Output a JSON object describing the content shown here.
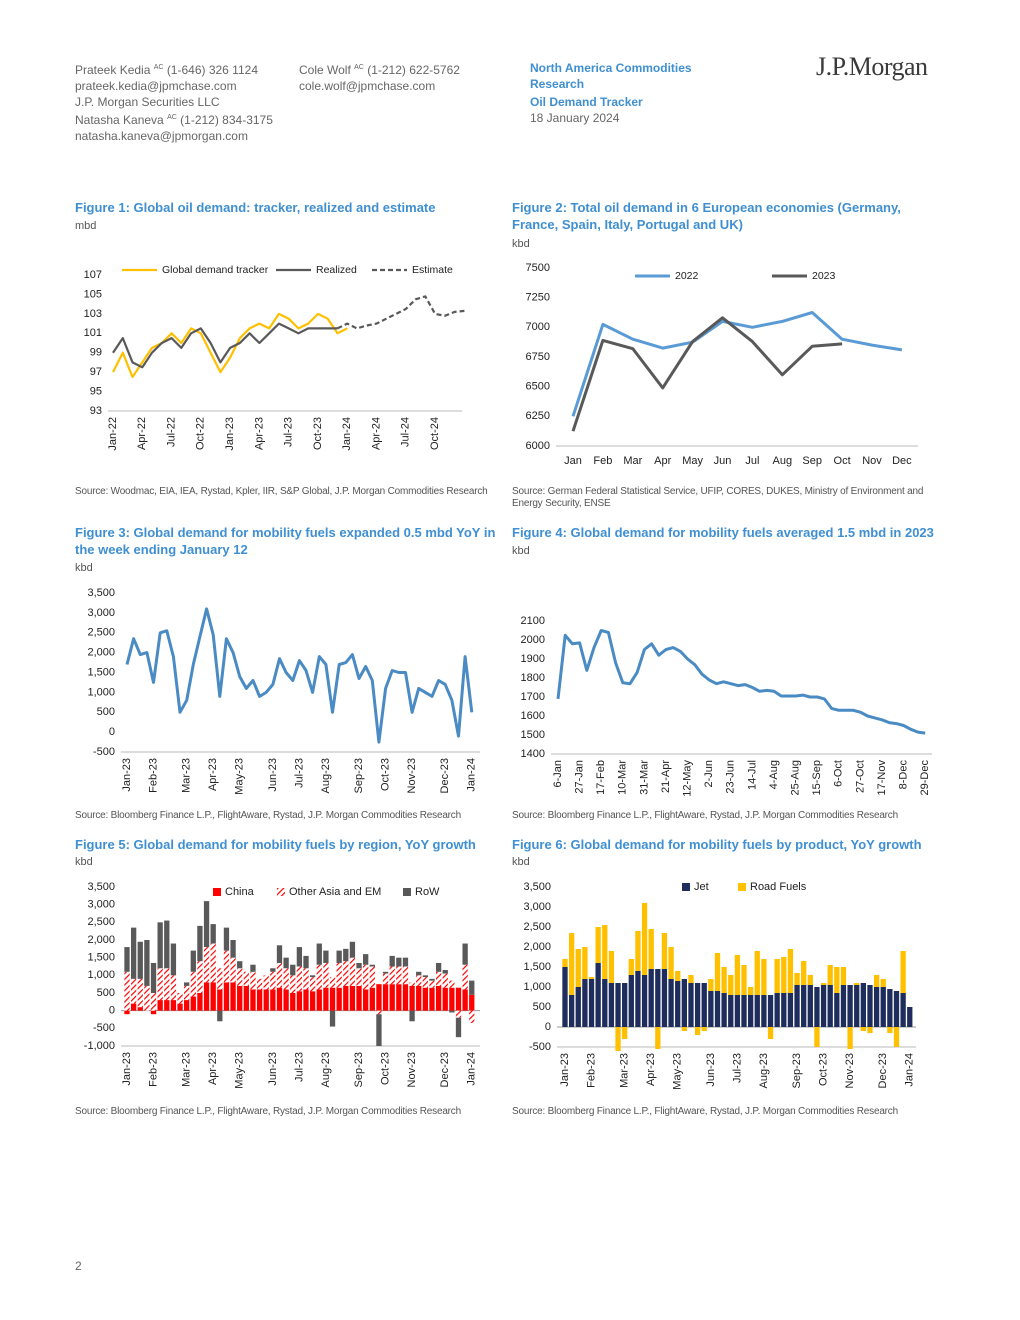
{
  "header": {
    "analysts": [
      {
        "name": "Prateek Kedia",
        "sup": "AC",
        "phone": "(1-646) 326 1124",
        "email": "prateek.kedia@jpmchase.com",
        "firm": "J.P. Morgan Securities LLC"
      },
      {
        "name": "Natasha Kaneva",
        "sup": "AC",
        "phone": "(1-212) 834-3175",
        "email": "natasha.kaneva@jpmorgan.com"
      },
      {
        "name": "Cole Wolf",
        "sup": "AC",
        "phone": "(1-212) 622-5762",
        "email": "cole.wolf@jpmchase.com"
      }
    ],
    "desk": "North America Commodities Research",
    "publication": "Oil Demand Tracker",
    "date": "18 January 2024",
    "logo": "J.P.Morgan"
  },
  "page_number": "2",
  "chart_data": [
    {
      "type": "line",
      "title": "Figure 1: Global oil demand: tracker, realized and estimate",
      "ylabel": "mbd",
      "source": "Source: Woodmac, EIA, IEA, Rystad, Kpler, IIR, S&P Global, J.P. Morgan Commodities Research",
      "categories": [
        "Jan-22",
        null,
        null,
        "Apr-22",
        null,
        null,
        "Jul-22",
        null,
        null,
        "Oct-22",
        null,
        null,
        "Jan-23",
        null,
        null,
        "Apr-23",
        null,
        null,
        "Jul-23",
        null,
        null,
        "Oct-23",
        null,
        null,
        "Jan-24",
        null,
        null,
        "Apr-24",
        null,
        null,
        "Jul-24",
        null,
        null,
        "Oct-24",
        null,
        null,
        null
      ],
      "series": [
        {
          "name": "Global demand tracker",
          "color": "#ffc000",
          "values": [
            97,
            99,
            96.5,
            98,
            99.5,
            100,
            101,
            100,
            101.5,
            101,
            99,
            97,
            98.5,
            100.5,
            101.5,
            102,
            101.5,
            103,
            102.5,
            101.5,
            102,
            103,
            102.5,
            101,
            101.5,
            null,
            null,
            null,
            null,
            null,
            null,
            null,
            null,
            null,
            null,
            null,
            null
          ]
        },
        {
          "name": "Realized",
          "color": "#595959",
          "values": [
            99,
            100.5,
            98,
            97.5,
            99,
            100,
            100.5,
            99.5,
            101,
            101.5,
            100,
            98,
            99.5,
            100,
            101,
            100,
            101,
            102,
            101.5,
            101,
            101.5,
            101.5,
            101.5,
            101.5,
            null,
            null,
            null,
            null,
            null,
            null,
            null,
            null,
            null,
            null,
            null,
            null,
            null
          ]
        },
        {
          "name": "Estimate",
          "color": "#595959",
          "dashed": true,
          "values": [
            null,
            null,
            null,
            null,
            null,
            null,
            null,
            null,
            null,
            null,
            null,
            null,
            null,
            null,
            null,
            null,
            null,
            null,
            null,
            null,
            null,
            null,
            null,
            101.5,
            102,
            101.5,
            101.8,
            102,
            102.5,
            103,
            103.5,
            104.5,
            104.8,
            103,
            102.8,
            103.2,
            103.3
          ]
        }
      ],
      "ylim": [
        93,
        107
      ],
      "yticks": [
        93,
        95,
        97,
        99,
        101,
        103,
        105,
        107
      ],
      "grid": false
    },
    {
      "type": "line",
      "title": "Figure 2: Total oil demand in 6 European economies (Germany, France, Spain, Italy, Portugal and UK)",
      "ylabel": "kbd",
      "source": "Source: German Federal Statistical Service, UFIP, CORES, DUKES, Ministry of Environment and Energy Security, ENSE",
      "categories": [
        "Jan",
        "Feb",
        "Mar",
        "Apr",
        "May",
        "Jun",
        "Jul",
        "Aug",
        "Sep",
        "Oct",
        "Nov",
        "Dec"
      ],
      "series": [
        {
          "name": "2022",
          "color": "#5b9bd5",
          "values": [
            6250,
            7025,
            6900,
            6825,
            6875,
            7050,
            7000,
            7050,
            7125,
            6900,
            6850,
            6810
          ]
        },
        {
          "name": "2023",
          "color": "#595959",
          "values": [
            6125,
            6890,
            6820,
            6490,
            6880,
            7080,
            6880,
            6600,
            6840,
            6860,
            null,
            null
          ]
        }
      ],
      "ylim": [
        6000,
        7500
      ],
      "yticks": [
        6000,
        6250,
        6500,
        6750,
        7000,
        7250,
        7500
      ],
      "grid": false
    },
    {
      "type": "line",
      "title": "Figure 3: Global demand for mobility fuels expanded 0.5 mbd YoY in the week ending January 12",
      "ylabel": "kbd",
      "source": "Source: Bloomberg Finance L.P., FlightAware, Rystad, J.P. Morgan Commodities Research",
      "categories": [
        "Jan-23",
        null,
        null,
        null,
        "Feb-23",
        null,
        null,
        null,
        null,
        "Mar-23",
        null,
        null,
        null,
        "Apr-23",
        null,
        null,
        null,
        "May-23",
        null,
        null,
        null,
        null,
        "Jun-23",
        null,
        null,
        null,
        "Jul-23",
        null,
        null,
        null,
        "Aug-23",
        null,
        null,
        null,
        null,
        "Sep-23",
        null,
        null,
        null,
        "Oct-23",
        null,
        null,
        null,
        "Nov-23",
        null,
        null,
        null,
        null,
        "Dec-23",
        null,
        null,
        null,
        "Jan-24"
      ],
      "series": [
        {
          "name": "Mobility fuels",
          "color": "#4a8bc4",
          "values": [
            1700,
            2350,
            1950,
            2000,
            1250,
            2500,
            2550,
            1900,
            500,
            800,
            1700,
            2400,
            3100,
            2450,
            900,
            2350,
            2000,
            1400,
            1100,
            1300,
            900,
            1000,
            1200,
            1850,
            1500,
            1300,
            1800,
            1550,
            1000,
            1900,
            1700,
            500,
            1700,
            1750,
            1950,
            1350,
            1650,
            1300,
            -250,
            1100,
            1550,
            1500,
            1500,
            500,
            1100,
            1000,
            900,
            1300,
            1200,
            800,
            -100,
            1900,
            500
          ]
        }
      ],
      "ylim": [
        -500,
        3500
      ],
      "yticks": [
        -500,
        0,
        500,
        {
          "value": 1000,
          "label": "1,000"
        },
        {
          "value": 1500,
          "label": "1,500"
        },
        {
          "value": 2000,
          "label": "2,000"
        },
        {
          "value": 2500,
          "label": "2,500"
        },
        {
          "value": 3000,
          "label": "3,000"
        },
        {
          "value": 3500,
          "label": "3,500"
        }
      ],
      "grid": false
    },
    {
      "type": "line",
      "title": "Figure 4: Global demand for mobility fuels averaged 1.5 mbd in 2023",
      "ylabel": "kbd",
      "source": "Source: Bloomberg Finance L.P., FlightAware, Rystad, J.P. Morgan Commodities Research",
      "categories": [
        "6-Jan",
        null,
        null,
        "27-Jan",
        null,
        null,
        "17-Feb",
        null,
        null,
        "10-Mar",
        null,
        null,
        "31-Mar",
        null,
        null,
        "21-Apr",
        null,
        null,
        "12-May",
        null,
        null,
        "2-Jun",
        null,
        null,
        "23-Jun",
        null,
        null,
        "14-Jul",
        null,
        null,
        "4-Aug",
        null,
        null,
        "25-Aug",
        null,
        null,
        "15-Sep",
        null,
        null,
        "6-Oct",
        null,
        null,
        "27-Oct",
        null,
        null,
        "17-Nov",
        null,
        null,
        "8-Dec",
        null,
        null,
        "29-Dec"
      ],
      "series": [
        {
          "name": "Mobility fuels",
          "color": "#4a8bc4",
          "values": [
            1690,
            2025,
            1980,
            1985,
            1840,
            1960,
            2050,
            2040,
            1880,
            1775,
            1770,
            1830,
            1950,
            1980,
            1920,
            1950,
            1960,
            1940,
            1900,
            1870,
            1820,
            1790,
            1770,
            1780,
            1770,
            1760,
            1765,
            1750,
            1730,
            1735,
            1730,
            1705,
            1705,
            1705,
            1710,
            1700,
            1700,
            1690,
            1640,
            1630,
            1630,
            1630,
            1620,
            1600,
            1590,
            1580,
            1565,
            1560,
            1550,
            1530,
            1515,
            1510
          ]
        }
      ],
      "ylim": [
        1400,
        2100
      ],
      "yticks": [
        1400,
        1500,
        1600,
        1700,
        1800,
        1900,
        2000,
        2100
      ],
      "grid": false
    },
    {
      "type": "stacked_bar",
      "title": "Figure 5: Global demand for mobility fuels by region, YoY growth",
      "ylabel": "kbd",
      "source": "Source: Bloomberg Finance L.P., FlightAware, Rystad, J.P. Morgan Commodities Research",
      "categories": [
        "Jan-23",
        null,
        null,
        null,
        "Feb-23",
        null,
        null,
        null,
        null,
        "Mar-23",
        null,
        null,
        null,
        "Apr-23",
        null,
        null,
        null,
        "May-23",
        null,
        null,
        null,
        null,
        "Jun-23",
        null,
        null,
        null,
        "Jul-23",
        null,
        null,
        null,
        "Aug-23",
        null,
        null,
        null,
        null,
        "Sep-23",
        null,
        null,
        null,
        "Oct-23",
        null,
        null,
        null,
        "Nov-23",
        null,
        null,
        null,
        null,
        "Dec-23",
        null,
        null,
        null,
        "Jan-24"
      ],
      "series": [
        {
          "name": "China",
          "color": "#ff0000",
          "values": [
            -100,
            200,
            100,
            0,
            -100,
            300,
            300,
            300,
            200,
            300,
            400,
            500,
            800,
            800,
            600,
            800,
            800,
            700,
            700,
            600,
            600,
            600,
            600,
            650,
            600,
            500,
            550,
            600,
            550,
            600,
            650,
            650,
            650,
            700,
            700,
            700,
            600,
            650,
            750,
            750,
            750,
            750,
            750,
            700,
            700,
            650,
            650,
            700,
            650,
            650,
            650,
            600,
            450
          ]
        },
        {
          "name": "Other Asia and EM",
          "color": "#ff0000",
          "pattern": "hatch",
          "values": [
            1100,
            700,
            800,
            700,
            500,
            900,
            900,
            700,
            300,
            400,
            700,
            900,
            1000,
            1100,
            600,
            900,
            700,
            500,
            400,
            500,
            300,
            400,
            500,
            700,
            600,
            500,
            700,
            600,
            400,
            700,
            700,
            300,
            700,
            700,
            800,
            500,
            700,
            600,
            -100,
            300,
            500,
            500,
            500,
            100,
            300,
            300,
            200,
            400,
            400,
            200,
            -200,
            700,
            -350
          ]
        },
        {
          "name": "RoW",
          "color": "#595959",
          "values": [
            700,
            1450,
            1050,
            1300,
            850,
            1300,
            1350,
            900,
            0,
            100,
            600,
            1000,
            1300,
            550,
            -300,
            650,
            500,
            200,
            0,
            200,
            0,
            0,
            100,
            500,
            300,
            300,
            550,
            350,
            50,
            600,
            350,
            -450,
            350,
            350,
            450,
            150,
            300,
            50,
            -900,
            50,
            300,
            250,
            250,
            -300,
            100,
            50,
            50,
            250,
            100,
            -50,
            -550,
            600,
            400
          ]
        }
      ],
      "ylim": [
        -1000,
        3500
      ],
      "yticks": [
        {
          "value": -1000,
          "label": "-1,000"
        },
        -500,
        0,
        500,
        {
          "value": 1000,
          "label": "1,000"
        },
        {
          "value": 1500,
          "label": "1,500"
        },
        {
          "value": 2000,
          "label": "2,000"
        },
        {
          "value": 2500,
          "label": "2,500"
        },
        {
          "value": 3000,
          "label": "3,000"
        },
        {
          "value": 3500,
          "label": "3,500"
        }
      ],
      "grid": false
    },
    {
      "type": "stacked_bar",
      "title": "Figure 6: Global demand for mobility fuels by product, YoY growth",
      "ylabel": "kbd",
      "source": "Source: Bloomberg Finance L.P., FlightAware, Rystad, J.P. Morgan Commodities Research",
      "categories": [
        "Jan-23",
        null,
        null,
        null,
        "Feb-23",
        null,
        null,
        null,
        null,
        "Mar-23",
        null,
        null,
        null,
        "Apr-23",
        null,
        null,
        null,
        "May-23",
        null,
        null,
        null,
        null,
        "Jun-23",
        null,
        null,
        null,
        "Jul-23",
        null,
        null,
        null,
        "Aug-23",
        null,
        null,
        null,
        null,
        "Sep-23",
        null,
        null,
        null,
        "Oct-23",
        null,
        null,
        null,
        "Nov-23",
        null,
        null,
        null,
        null,
        "Dec-23",
        null,
        null,
        null,
        "Jan-24"
      ],
      "series": [
        {
          "name": "Jet",
          "color": "#1f2d5c",
          "values": [
            1500,
            800,
            1000,
            1200,
            1200,
            1600,
            1200,
            1100,
            1100,
            1100,
            1300,
            1400,
            1300,
            1450,
            1450,
            1450,
            1200,
            1150,
            1200,
            1100,
            1100,
            1100,
            900,
            900,
            850,
            800,
            800,
            800,
            800,
            800,
            800,
            800,
            850,
            850,
            850,
            1050,
            1050,
            1050,
            1000,
            1050,
            1050,
            850,
            1050,
            1050,
            1050,
            1100,
            1050,
            1000,
            1000,
            950,
            900,
            850,
            500
          ]
        },
        {
          "name": "Road Fuels",
          "color": "#ffc000",
          "values": [
            200,
            1550,
            950,
            800,
            50,
            900,
            1350,
            800,
            -600,
            -300,
            400,
            1000,
            1800,
            1000,
            -550,
            900,
            800,
            250,
            -100,
            200,
            -200,
            -100,
            300,
            950,
            650,
            500,
            1000,
            750,
            200,
            1100,
            900,
            -300,
            850,
            900,
            1100,
            300,
            600,
            250,
            -500,
            50,
            500,
            650,
            450,
            -550,
            50,
            -100,
            -150,
            300,
            200,
            -150,
            -500,
            1050,
            0
          ]
        }
      ],
      "ylim": [
        -500,
        3500
      ],
      "yticks": [
        -500,
        0,
        500,
        {
          "value": 1000,
          "label": "1,000"
        },
        {
          "value": 1500,
          "label": "1,500"
        },
        {
          "value": 2000,
          "label": "2,000"
        },
        {
          "value": 2500,
          "label": "2,500"
        },
        {
          "value": 3000,
          "label": "3,000"
        },
        {
          "value": 3500,
          "label": "3,500"
        }
      ],
      "grid": false
    }
  ]
}
